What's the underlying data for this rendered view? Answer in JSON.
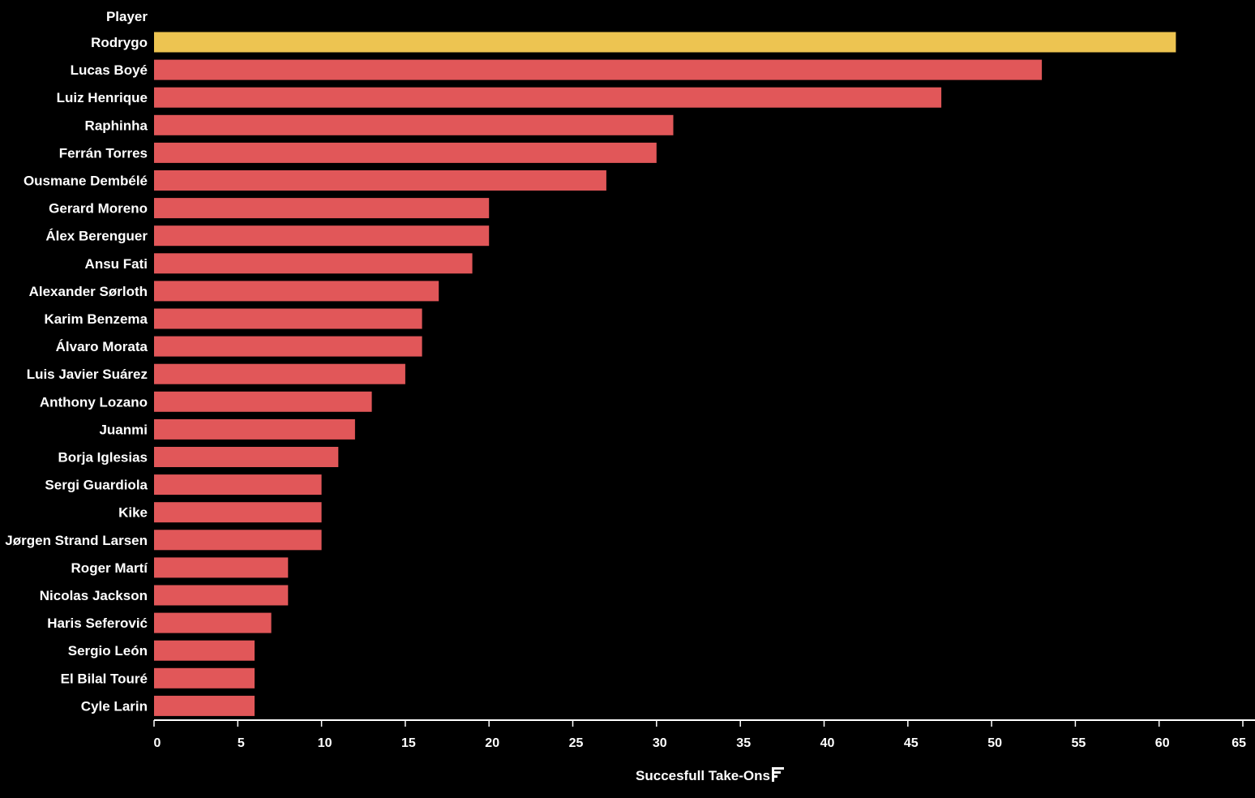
{
  "chart_data": {
    "type": "bar",
    "orientation": "horizontal",
    "dimension_header": "Player",
    "xlabel": "Succesfull Take-Ons",
    "sort_icon": "sort-descending-icon",
    "xlim": [
      0,
      65
    ],
    "xticks": [
      0,
      5,
      10,
      15,
      20,
      25,
      30,
      35,
      40,
      45,
      50,
      55,
      60,
      65
    ],
    "grid": false,
    "colors": {
      "background": "#000000",
      "highlight": "#EDC451",
      "bar": "#E15759",
      "text": "#FFFFFF"
    },
    "highlighted_category": "Rodrygo",
    "categories": [
      "Rodrygo",
      "Lucas Boyé",
      "Luiz Henrique",
      "Raphinha",
      "Ferrán Torres",
      "Ousmane Dembélé",
      "Gerard Moreno",
      "Álex Berenguer",
      "Ansu Fati",
      "Alexander Sørloth",
      "Karim Benzema",
      "Álvaro Morata",
      "Luis Javier Suárez",
      "Anthony Lozano",
      "Juanmi",
      "Borja Iglesias",
      "Sergi Guardiola",
      "Kike",
      "Jørgen Strand Larsen",
      "Roger Martí",
      "Nicolas Jackson",
      "Haris Seferović",
      "Sergio León",
      "El Bilal Touré",
      "Cyle Larin"
    ],
    "values": [
      61,
      53,
      47,
      31,
      30,
      27,
      20,
      20,
      19,
      17,
      16,
      16,
      15,
      13,
      12,
      11,
      10,
      10,
      10,
      8,
      8,
      7,
      6,
      6,
      6
    ]
  }
}
